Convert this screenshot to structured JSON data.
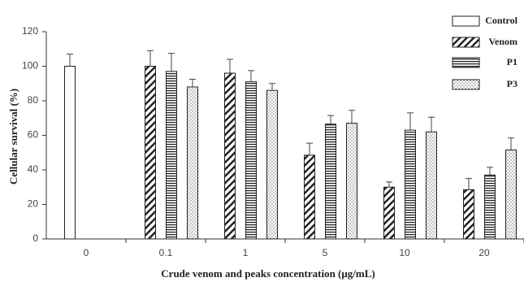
{
  "chart_data": {
    "type": "bar",
    "x_label": "Crude venom and peaks concentration (μg/mL)",
    "y_label": "Cellular survival (%)",
    "categories": [
      "0",
      "0.1",
      "1",
      "5",
      "10",
      "20"
    ],
    "series": [
      {
        "name": "Control",
        "color": "#222222",
        "values": [
          100,
          null,
          null,
          null,
          null,
          null
        ],
        "errors": [
          7,
          null,
          null,
          null,
          null,
          null
        ]
      },
      {
        "name": "Venom",
        "color": "#222222",
        "values": [
          null,
          100,
          96,
          48.5,
          30,
          28.5
        ],
        "errors": [
          null,
          9,
          8,
          7,
          3,
          6.5
        ]
      },
      {
        "name": "P1",
        "color": "#222222",
        "values": [
          null,
          97,
          91,
          66.5,
          63,
          37
        ],
        "errors": [
          null,
          10.5,
          6.5,
          5,
          10,
          4.5
        ]
      },
      {
        "name": "P3",
        "color": "#222222",
        "values": [
          null,
          88,
          86,
          67,
          62,
          51.5
        ],
        "errors": [
          null,
          4.5,
          4,
          7.5,
          8.5,
          7
        ]
      }
    ],
    "ylim": [
      0,
      120
    ],
    "yticks": [
      0,
      20,
      40,
      60,
      80,
      100,
      120
    ],
    "grid": false,
    "legend": "top-right"
  }
}
